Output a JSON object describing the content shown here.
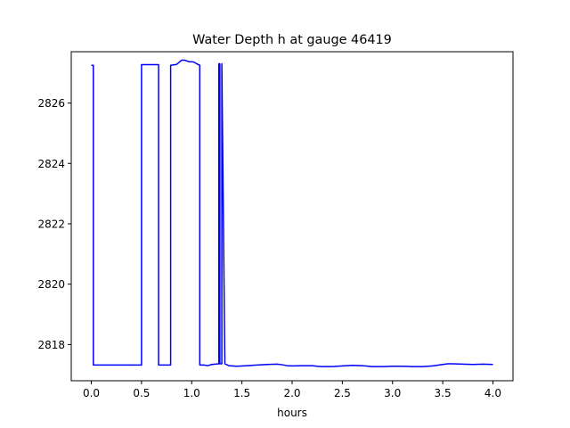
{
  "chart_data": {
    "type": "line",
    "title": "Water Depth h at gauge 46419",
    "xlabel": "hours",
    "ylabel": "",
    "xlim": [
      -0.2,
      4.2
    ],
    "ylim": [
      2816.8,
      2827.7
    ],
    "xticks": [
      0.0,
      0.5,
      1.0,
      1.5,
      2.0,
      2.5,
      3.0,
      3.5,
      4.0
    ],
    "xtick_labels": [
      "0.0",
      "0.5",
      "1.0",
      "1.5",
      "2.0",
      "2.5",
      "3.0",
      "3.5",
      "4.0"
    ],
    "yticks": [
      2818,
      2820,
      2822,
      2824,
      2826
    ],
    "ytick_labels": [
      "2818",
      "2820",
      "2822",
      "2824",
      "2826"
    ],
    "grid": false,
    "series": [
      {
        "color": "#0000ff",
        "x": [
          0.0,
          0.02,
          0.02,
          0.05,
          0.1,
          0.3,
          0.5,
          0.5,
          0.67,
          0.67,
          0.79,
          0.79,
          0.85,
          0.9,
          0.93,
          0.97,
          1.02,
          1.05,
          1.08,
          1.08,
          1.12,
          1.16,
          1.2,
          1.27,
          1.27,
          1.28,
          1.28,
          1.3,
          1.3,
          1.33,
          1.37,
          1.45,
          1.55,
          1.65,
          1.75,
          1.85,
          1.9,
          1.95,
          2.0,
          2.1,
          2.2,
          2.25,
          2.3,
          2.4,
          2.5,
          2.6,
          2.7,
          2.8,
          2.9,
          3.0,
          3.1,
          3.2,
          3.3,
          3.4,
          3.5,
          3.55,
          3.6,
          3.7,
          3.8,
          3.9,
          4.0
        ],
        "y": [
          2827.25,
          2827.25,
          2817.32,
          2817.32,
          2817.32,
          2817.32,
          2817.32,
          2827.27,
          2827.27,
          2817.32,
          2817.32,
          2827.25,
          2827.28,
          2827.42,
          2827.42,
          2827.37,
          2827.36,
          2827.3,
          2827.25,
          2817.32,
          2817.32,
          2817.3,
          2817.34,
          2817.36,
          2827.3,
          2827.3,
          2817.36,
          2817.36,
          2827.3,
          2817.36,
          2817.3,
          2817.28,
          2817.3,
          2817.32,
          2817.34,
          2817.35,
          2817.33,
          2817.3,
          2817.29,
          2817.3,
          2817.3,
          2817.28,
          2817.27,
          2817.27,
          2817.29,
          2817.31,
          2817.3,
          2817.27,
          2817.27,
          2817.28,
          2817.28,
          2817.27,
          2817.27,
          2817.29,
          2817.34,
          2817.36,
          2817.36,
          2817.35,
          2817.34,
          2817.35,
          2817.34
        ]
      }
    ]
  }
}
